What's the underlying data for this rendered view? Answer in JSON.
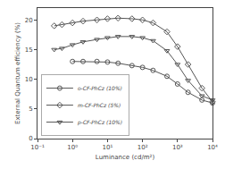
{
  "chart_data": {
    "type": "line",
    "xlabel": "Luminance (cd/m²)",
    "ylabel": "External Quantum efficiency (%)",
    "log": "x",
    "xlim": [
      0.1,
      10000
    ],
    "xticks": [
      {
        "value": 0.1,
        "label": "10⁻¹"
      },
      {
        "value": 1,
        "label": "10⁰"
      },
      {
        "value": 10,
        "label": "10¹"
      },
      {
        "value": 100,
        "label": "10²"
      },
      {
        "value": 1000,
        "label": "10³"
      },
      {
        "value": 10000,
        "label": "10⁴"
      }
    ],
    "ylim": [
      0,
      22
    ],
    "yticks": [
      0,
      5,
      10,
      15,
      20
    ],
    "grid": false,
    "legend": "lower left",
    "series": [
      {
        "name": "o-CF-PhCz (10%)",
        "color": "#555555",
        "marker": "circle",
        "x": [
          1.0,
          2.0,
          5.0,
          10.0,
          20.0,
          50.0,
          100.0,
          200.0,
          500.0,
          1000.0,
          2000.0,
          5000.0,
          10000.0
        ],
        "values": [
          13.0,
          13.0,
          13.0,
          12.9,
          12.7,
          12.3,
          12.0,
          11.5,
          10.5,
          9.2,
          7.8,
          6.5,
          6.0
        ]
      },
      {
        "name": "m-CF-PhCz (5%)",
        "color": "#555555",
        "marker": "diamond",
        "x": [
          0.3,
          0.5,
          1.0,
          2.0,
          5.0,
          10.0,
          20.0,
          50.0,
          100.0,
          200.0,
          500.0,
          1000.0,
          2000.0,
          5000.0,
          10000.0
        ],
        "values": [
          19.0,
          19.2,
          19.5,
          19.8,
          20.0,
          20.2,
          20.3,
          20.2,
          20.0,
          19.5,
          18.0,
          15.5,
          12.5,
          8.5,
          6.2
        ]
      },
      {
        "name": "p-CF-PhCz (10%)",
        "color": "#555555",
        "marker": "triangle-down",
        "x": [
          0.3,
          0.5,
          1.0,
          2.0,
          5.0,
          10.0,
          20.0,
          50.0,
          100.0,
          200.0,
          500.0,
          1000.0,
          2000.0,
          5000.0,
          10000.0
        ],
        "values": [
          15.0,
          15.2,
          15.8,
          16.3,
          16.7,
          17.0,
          17.2,
          17.2,
          17.0,
          16.5,
          14.8,
          12.5,
          9.8,
          7.2,
          6.5
        ]
      }
    ]
  }
}
